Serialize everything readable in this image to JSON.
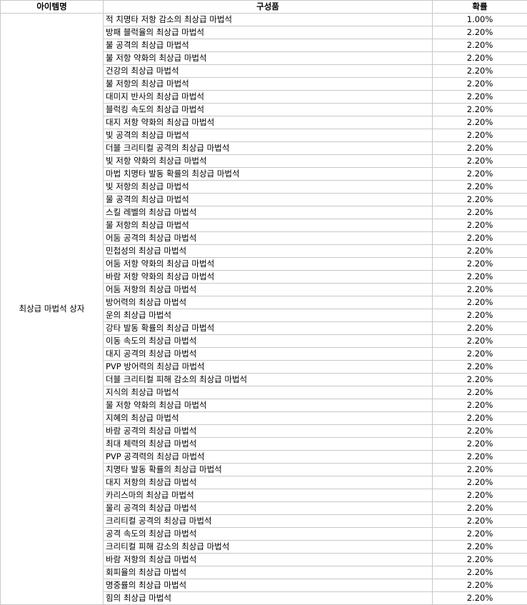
{
  "table": {
    "headers": {
      "item_name": "아이템명",
      "composition": "구성품",
      "probability": "확률"
    },
    "box_name": "최상급 마법석 상자",
    "rows": [
      {
        "item": "적 치명타 저항 감소의 최상급 마법석",
        "prob": "1.00%"
      },
      {
        "item": "방패 블럭율의 최상급 마법석",
        "prob": "2.20%"
      },
      {
        "item": "불 공격의 최상급 마법석",
        "prob": "2.20%"
      },
      {
        "item": "불 저항 약화의 최상급 마법석",
        "prob": "2.20%"
      },
      {
        "item": "건강의 최상급 마법석",
        "prob": "2.20%"
      },
      {
        "item": "불 저항의 최상급 마법석",
        "prob": "2.20%"
      },
      {
        "item": "대미지 반사의 최상급 마법석",
        "prob": "2.20%"
      },
      {
        "item": "블럭킹 속도의 최상급 마법석",
        "prob": "2.20%"
      },
      {
        "item": "대지 저항 약화의 최상급 마법석",
        "prob": "2.20%"
      },
      {
        "item": "빛 공격의 최상급 마법석",
        "prob": "2.20%"
      },
      {
        "item": "더블 크리티컬 공격의 최상급 마법석",
        "prob": "2.20%"
      },
      {
        "item": "빛 저항 약화의 최상급 마법석",
        "prob": "2.20%"
      },
      {
        "item": "마법 치명타 발동 확률의 최상급 마법석",
        "prob": "2.20%"
      },
      {
        "item": "빛 저항의 최상급 마법석",
        "prob": "2.20%"
      },
      {
        "item": "물 공격의 최상급 마법석",
        "prob": "2.20%"
      },
      {
        "item": "스킬 레벨의 최상급 마법석",
        "prob": "2.20%"
      },
      {
        "item": "물 저항의 최상급 마법석",
        "prob": "2.20%"
      },
      {
        "item": "어둠 공격의 최상급 마법석",
        "prob": "2.20%"
      },
      {
        "item": "민첩성의 최상급 마법석",
        "prob": "2.20%"
      },
      {
        "item": "어둠 저항 약화의 최상급 마법석",
        "prob": "2.20%"
      },
      {
        "item": "바람 저항 약화의 최상급 마법석",
        "prob": "2.20%"
      },
      {
        "item": "어둠 저항의 최상급 마법석",
        "prob": "2.20%"
      },
      {
        "item": "방어력의 최상급 마법석",
        "prob": "2.20%"
      },
      {
        "item": "운의 최상급 마법석",
        "prob": "2.20%"
      },
      {
        "item": "강타 발동 확률의 최상급 마법석",
        "prob": "2.20%"
      },
      {
        "item": "이동 속도의 최상급 마법석",
        "prob": "2.20%"
      },
      {
        "item": "대지 공격의 최상급 마법석",
        "prob": "2.20%"
      },
      {
        "item": "PVP 방어력의 최상급 마법석",
        "prob": "2.20%"
      },
      {
        "item": "더블 크리티컬 피해 감소의 최상급 마법석",
        "prob": "2.20%"
      },
      {
        "item": "지식의 최상급 마법석",
        "prob": "2.20%"
      },
      {
        "item": "물 저항 약화의 최상급 마법석",
        "prob": "2.20%"
      },
      {
        "item": "지혜의 최상급 마법석",
        "prob": "2.20%"
      },
      {
        "item": "바람 공격의 최상급 마법석",
        "prob": "2.20%"
      },
      {
        "item": "최대 체력의 최상급 마법석",
        "prob": "2.20%"
      },
      {
        "item": "PVP 공격력의 최상급 마법석",
        "prob": "2.20%"
      },
      {
        "item": "치명타 발동 확률의 최상급 마법석",
        "prob": "2.20%"
      },
      {
        "item": "대지 저항의 최상급 마법석",
        "prob": "2.20%"
      },
      {
        "item": "카리스마의 최상급 마법석",
        "prob": "2.20%"
      },
      {
        "item": "물리 공격의 최상급 마법석",
        "prob": "2.20%"
      },
      {
        "item": "크리티컬 공격의 최상급 마법석",
        "prob": "2.20%"
      },
      {
        "item": "공격 속도의 최상급 마법석",
        "prob": "2.20%"
      },
      {
        "item": "크리티컬 피해 감소의 최상급 마법석",
        "prob": "2.20%"
      },
      {
        "item": "바람 저항의 최상급 마법석",
        "prob": "2.20%"
      },
      {
        "item": "회피율의 최상급 마법석",
        "prob": "2.20%"
      },
      {
        "item": "명중률의 최상급 마법석",
        "prob": "2.20%"
      },
      {
        "item": "힘의 최상급 마법석",
        "prob": "2.20%"
      }
    ]
  }
}
